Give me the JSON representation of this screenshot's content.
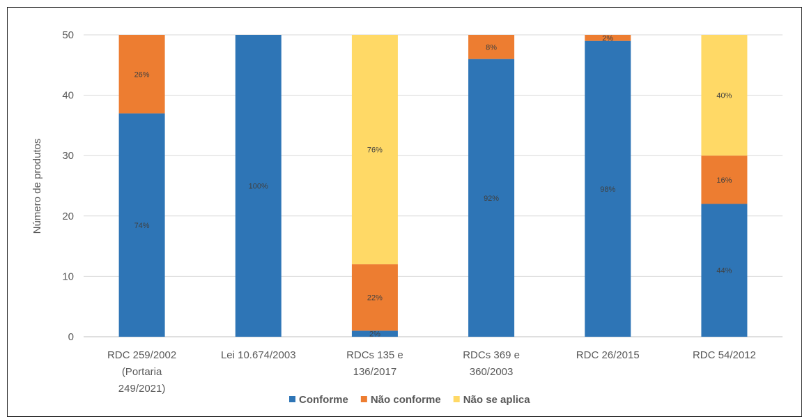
{
  "chart_data": {
    "type": "bar",
    "stacked": true,
    "title": "",
    "xlabel": "",
    "ylabel": "Número de produtos",
    "ylim": [
      0,
      50
    ],
    "yticks": [
      0,
      10,
      20,
      30,
      40,
      50
    ],
    "grid": true,
    "legend_position": "bottom",
    "categories": [
      [
        "RDC 259/2002",
        "(Portaria",
        "249/2021)"
      ],
      [
        "Lei 10.674/2003"
      ],
      [
        "RDCs 135 e",
        "136/2017"
      ],
      [
        "RDCs 369 e",
        "360/2003"
      ],
      [
        "RDC 26/2015"
      ],
      [
        "RDC 54/2012"
      ]
    ],
    "series": [
      {
        "name": "Conforme",
        "color": "#2E75B6",
        "values": [
          37,
          50,
          1,
          46,
          49,
          22
        ],
        "labels": [
          "74%",
          "100%",
          "2%",
          "92%",
          "98%",
          "44%"
        ]
      },
      {
        "name": "Não conforme",
        "color": "#ED7D31",
        "values": [
          13,
          0,
          11,
          4,
          1,
          8
        ],
        "labels": [
          "26%",
          "",
          "22%",
          "8%",
          "2%",
          "16%"
        ]
      },
      {
        "name": "Não se aplica",
        "color": "#FFD966",
        "values": [
          0,
          0,
          38,
          0,
          0,
          20
        ],
        "labels": [
          "",
          "",
          "76%",
          "",
          "",
          "40%"
        ]
      }
    ]
  }
}
